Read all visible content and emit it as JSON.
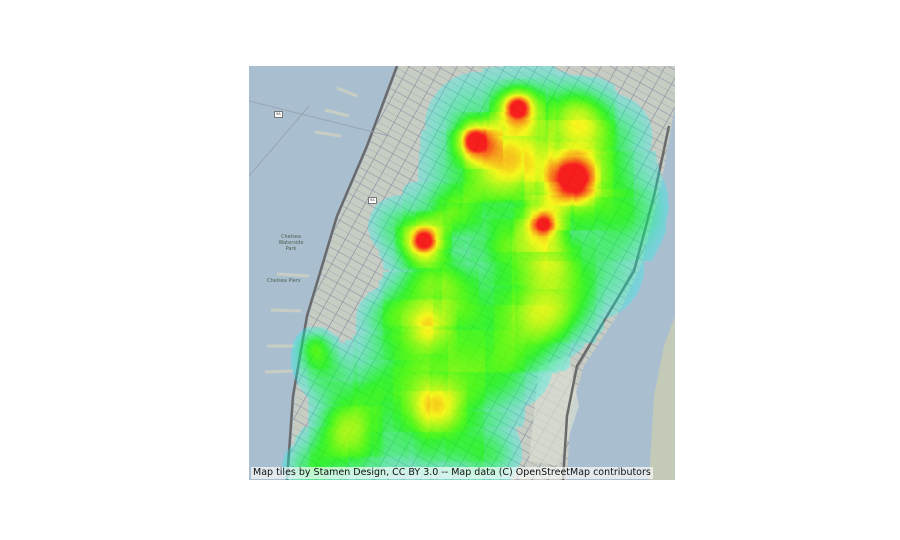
{
  "attribution": "Map tiles by Stamen Design, CC BY 3.0 -- Map data (C) OpenStreetMap contributors",
  "colors": {
    "water": "#a9bfd0",
    "land": "#c8cdc4",
    "street": "#7d8697",
    "highway": "#6a6a6a",
    "park": "#d8ddd2"
  },
  "heatmap": {
    "colormap": [
      "#00ffff",
      "#00ff00",
      "#ffff00",
      "#ff0000"
    ],
    "hotspots": [
      {
        "u": 0.63,
        "v": 0.1,
        "w": 1.0
      },
      {
        "u": 0.53,
        "v": 0.18,
        "w": 0.95
      },
      {
        "u": 0.41,
        "v": 0.42,
        "w": 1.0
      },
      {
        "u": 0.69,
        "v": 0.38,
        "w": 0.85
      },
      {
        "u": 0.76,
        "v": 0.27,
        "w": 0.75
      }
    ]
  },
  "labels": {
    "highway_shields": [
      "9A",
      "9A"
    ],
    "place_1": "Chelsea Waterside Park",
    "place_2": "Chelsea Piers"
  }
}
